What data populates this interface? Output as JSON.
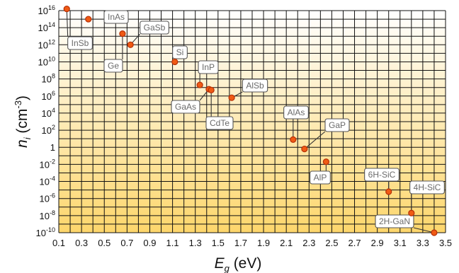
{
  "chart_data": {
    "type": "scatter",
    "xlabel": {
      "symbol": "E",
      "subscript": "g",
      "unit": "(eV)"
    },
    "ylabel": {
      "symbol": "n",
      "subscript": "i",
      "unit_open": "(cm",
      "unit_exp": "-3",
      "unit_close": ")"
    },
    "x_ticks": [
      "0.1",
      "0.3",
      "0.5",
      "0.7",
      "0.9",
      "1.1",
      "1.3",
      "1.5",
      "1.7",
      "1.9",
      "2.1",
      "2.3",
      "2.5",
      "2.7",
      "2.9",
      "3.1",
      "3.3",
      "3.5"
    ],
    "y_ticks": [
      {
        "base": "10",
        "exp": "16"
      },
      {
        "base": "10",
        "exp": "14"
      },
      {
        "base": "10",
        "exp": "12"
      },
      {
        "base": "10",
        "exp": "10"
      },
      {
        "base": "10",
        "exp": "8"
      },
      {
        "base": "10",
        "exp": "6"
      },
      {
        "base": "10",
        "exp": "4"
      },
      {
        "base": "10",
        "exp": "2"
      },
      {
        "base": "1",
        "exp": ""
      },
      {
        "base": "10",
        "exp": "-2"
      },
      {
        "base": "10",
        "exp": "-4"
      },
      {
        "base": "10",
        "exp": "-6"
      },
      {
        "base": "10",
        "exp": "-8"
      },
      {
        "base": "10",
        "exp": "-10"
      }
    ],
    "xlim": [
      0.1,
      3.5
    ],
    "ylim_log10": [
      -10,
      16
    ],
    "y_scale": "log",
    "grid": true,
    "background_gradient": [
      "#ffffff",
      "#fdd66c"
    ],
    "marker_color": "#f05a14",
    "points": [
      {
        "label": "InSb",
        "x": 0.17,
        "y_log10": 16.2
      },
      {
        "label": "InAs",
        "x": 0.36,
        "y_log10": 15.0
      },
      {
        "label": "Ge",
        "x": 0.66,
        "y_log10": 13.3
      },
      {
        "label": "GaSb",
        "x": 0.73,
        "y_log10": 12.0
      },
      {
        "label": "Si",
        "x": 1.12,
        "y_log10": 10.0
      },
      {
        "label": "InP",
        "x": 1.34,
        "y_log10": 7.3
      },
      {
        "label": "GaAs",
        "x": 1.42,
        "y_log10": 6.8
      },
      {
        "label": "CdTe",
        "x": 1.44,
        "y_log10": 6.7
      },
      {
        "label": "AlSb",
        "x": 1.62,
        "y_log10": 5.8
      },
      {
        "label": "AlAs",
        "x": 2.16,
        "y_log10": 0.9
      },
      {
        "label": "GaP",
        "x": 2.26,
        "y_log10": -0.2
      },
      {
        "label": "AlP",
        "x": 2.45,
        "y_log10": -1.7
      },
      {
        "label": "6H-SiC",
        "x": 3.0,
        "y_log10": -5.2
      },
      {
        "label": "4H-SiC",
        "x": 3.2,
        "y_log10": -7.7
      },
      {
        "label": "2H-GaN",
        "x": 3.4,
        "y_log10": -10.0
      }
    ]
  }
}
